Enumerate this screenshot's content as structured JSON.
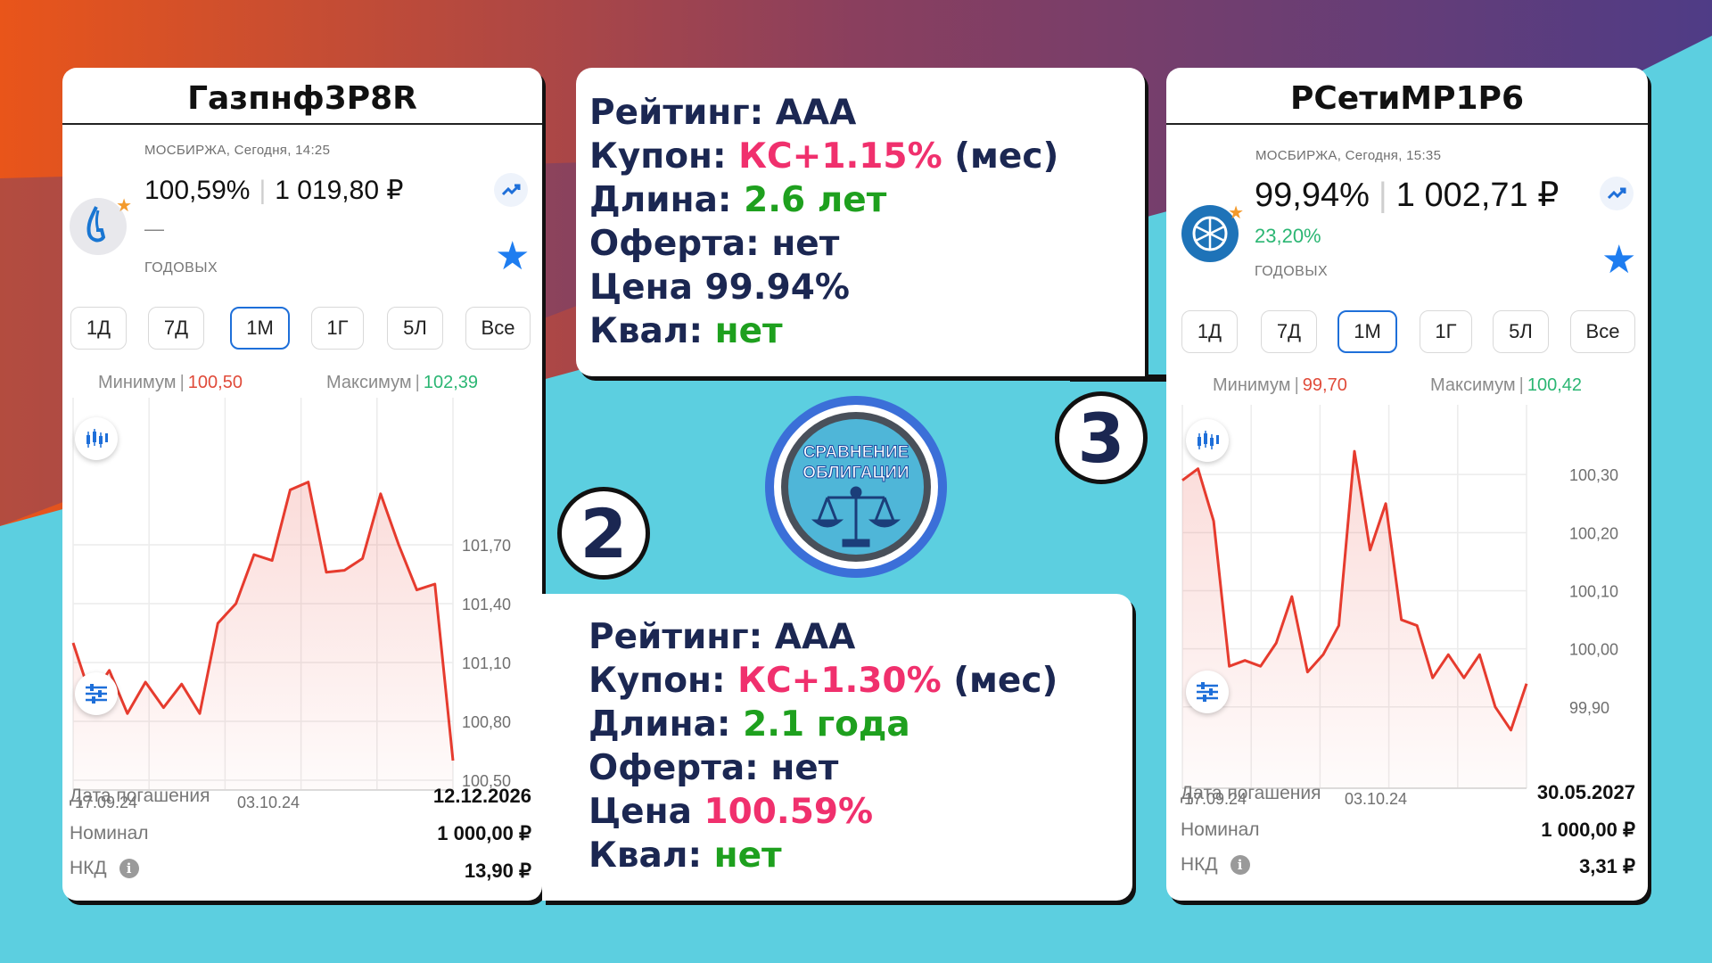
{
  "colors": {
    "bg_top_left": "#e9551a",
    "bg_top_mid": "#8a3f5e",
    "bg_top_right": "#4f3c86",
    "bg_bottom": "#5ccfe0",
    "chart_line": "#e63b2e",
    "accent_blue": "#1e6fd9",
    "pink": "#f0306d",
    "green": "#1ea01e",
    "navy": "#1b2752"
  },
  "left_card": {
    "title": "Газпнф3P8R",
    "exchange": "МОСБИРЖА, Сегодня, 14:25",
    "price_pct": "100,59%",
    "price_rub": "1 019,80 ₽",
    "yield": "—",
    "yield_label": "ГОДОВЫХ",
    "logo_icon": "gazprom-neft-logo",
    "periods": [
      "1Д",
      "7Д",
      "1М",
      "1Г",
      "5Л",
      "Все"
    ],
    "active_period": "1М",
    "min_label": "Минимум",
    "min_value": "100,50",
    "max_label": "Максимум",
    "max_value": "102,39",
    "rows": [
      {
        "label": "Дата погашения",
        "value": "12.12.2026"
      },
      {
        "label": "Номинал",
        "value": "1 000,00 ₽"
      },
      {
        "label": "НКД",
        "value": "13,90 ₽",
        "info": "i"
      }
    ]
  },
  "right_card": {
    "title": "РСетиMP1P6",
    "exchange": "МОСБИРЖА, Сегодня, 15:35",
    "price_pct": "99,94%",
    "price_rub": "1 002,71 ₽",
    "yield": "23,20%",
    "yield_label": "ГОДОВЫХ",
    "logo_icon": "rosseti-logo",
    "periods": [
      "1Д",
      "7Д",
      "1М",
      "1Г",
      "5Л",
      "Все"
    ],
    "active_period": "1М",
    "min_label": "Минимум",
    "min_value": "99,70",
    "max_label": "Максимум",
    "max_value": "100,42",
    "rows": [
      {
        "label": "Дата погашения",
        "value": "30.05.2027"
      },
      {
        "label": "Номинал",
        "value": "1 000,00 ₽"
      },
      {
        "label": "НКД",
        "value": "3,31 ₽",
        "info": "i"
      }
    ]
  },
  "info_top": {
    "rating_label": "Рейтинг:",
    "rating": "AAA",
    "coupon_label": "Купон:",
    "coupon": "КС+1.15%",
    "coupon_suffix": "(мес)",
    "length_label": "Длина:",
    "length": "2.6 лет",
    "offer_label": "Оферта:",
    "offer": "нет",
    "price_label": "Цена",
    "price": "99.94%",
    "qual_label": "Квал:",
    "qual": "нет"
  },
  "info_bottom": {
    "rating_label": "Рейтинг:",
    "rating": "AAA",
    "coupon_label": "Купон:",
    "coupon": "КС+1.30%",
    "coupon_suffix": "(мес)",
    "length_label": "Длина:",
    "length": "2.1 года",
    "offer_label": "Оферта:",
    "offer": "нет",
    "price_label": "Цена",
    "price": "100.59%",
    "qual_label": "Квал:",
    "qual": "нет"
  },
  "num_two": "2",
  "num_three": "3",
  "center_badge": {
    "line1": "СРАВНЕНИЕ",
    "line2": "ОБЛИГАЦИИ",
    "icon": "scales-icon"
  },
  "chart_data": [
    {
      "type": "line",
      "x_ticks": [
        "17.09.24",
        "03.10.24"
      ],
      "y_ticks": [
        "101,70",
        "101,40",
        "101,10",
        "100,80",
        "100,50"
      ],
      "ylim": [
        100.45,
        102.45
      ],
      "values": [
        101.2,
        100.92,
        101.06,
        100.84,
        101.0,
        100.87,
        100.99,
        100.84,
        101.3,
        101.4,
        101.65,
        101.62,
        101.98,
        102.02,
        101.56,
        101.57,
        101.63,
        101.96,
        101.7,
        101.47,
        101.5,
        100.6
      ],
      "min": "100,50",
      "max": "102,39"
    },
    {
      "type": "line",
      "x_ticks": [
        "17.09.24",
        "03.10.24"
      ],
      "y_ticks": [
        "100,30",
        "100,20",
        "100,10",
        "100,00",
        "99,90"
      ],
      "ylim": [
        99.76,
        100.42
      ],
      "values": [
        100.29,
        100.31,
        100.22,
        99.97,
        99.98,
        99.97,
        100.01,
        100.09,
        99.96,
        99.99,
        100.04,
        100.34,
        100.17,
        100.25,
        100.05,
        100.04,
        99.95,
        99.99,
        99.95,
        99.99,
        99.9,
        99.86,
        99.94
      ]
    }
  ]
}
